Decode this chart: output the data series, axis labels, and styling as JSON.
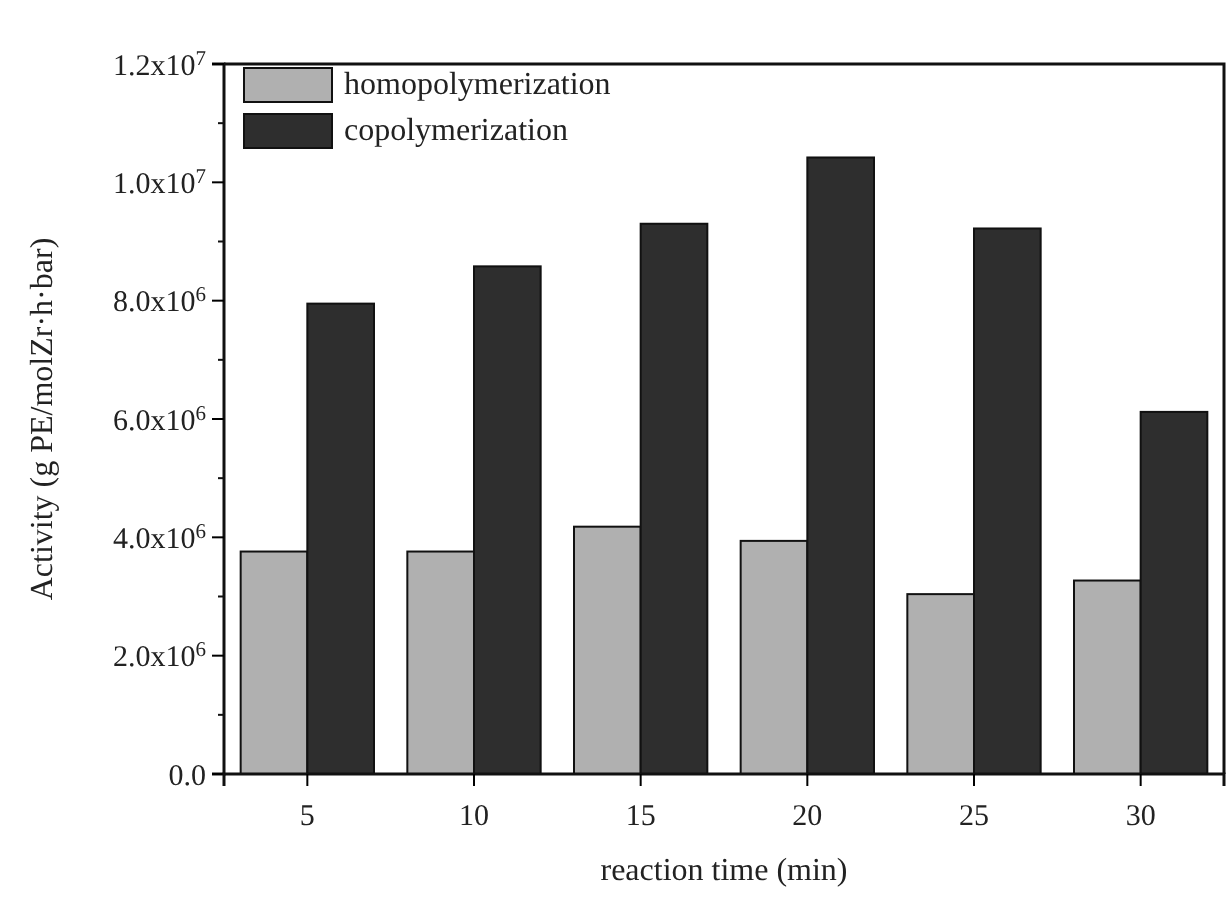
{
  "chart_data": {
    "type": "bar",
    "xlabel": "reaction time (min)",
    "ylabel": "Activity (g PE/molZr·h·bar)",
    "categories": [
      "5",
      "10",
      "15",
      "20",
      "25",
      "30"
    ],
    "series": [
      {
        "name": "homopolymerization",
        "color": "#b0b0b0",
        "values": [
          3760000.0,
          3760000.0,
          4180000.0,
          3940000.0,
          3040000.0,
          3270000.0
        ]
      },
      {
        "name": "copolymerization",
        "color": "#2e2e2e",
        "values": [
          7950000.0,
          8580000.0,
          9300000.0,
          10420000.0,
          9220000.0,
          6120000.0
        ]
      }
    ],
    "ylim": [
      0,
      12000000.0
    ],
    "yticks": [
      {
        "value": 0,
        "label": "0.0"
      },
      {
        "value": 2000000.0,
        "label": "2.0x10$^{6}$"
      },
      {
        "value": 4000000.0,
        "label": "4.0x10$^{6}$"
      },
      {
        "value": 6000000.0,
        "label": "6.0x10$^{6}$"
      },
      {
        "value": 8000000.0,
        "label": "8.0x10$^{6}$"
      },
      {
        "value": 10000000.0,
        "label": "1.0x10$^{7}$"
      },
      {
        "value": 12000000.0,
        "label": "1.2x10$^{7}$"
      }
    ],
    "legend": "top left",
    "grid": false
  }
}
